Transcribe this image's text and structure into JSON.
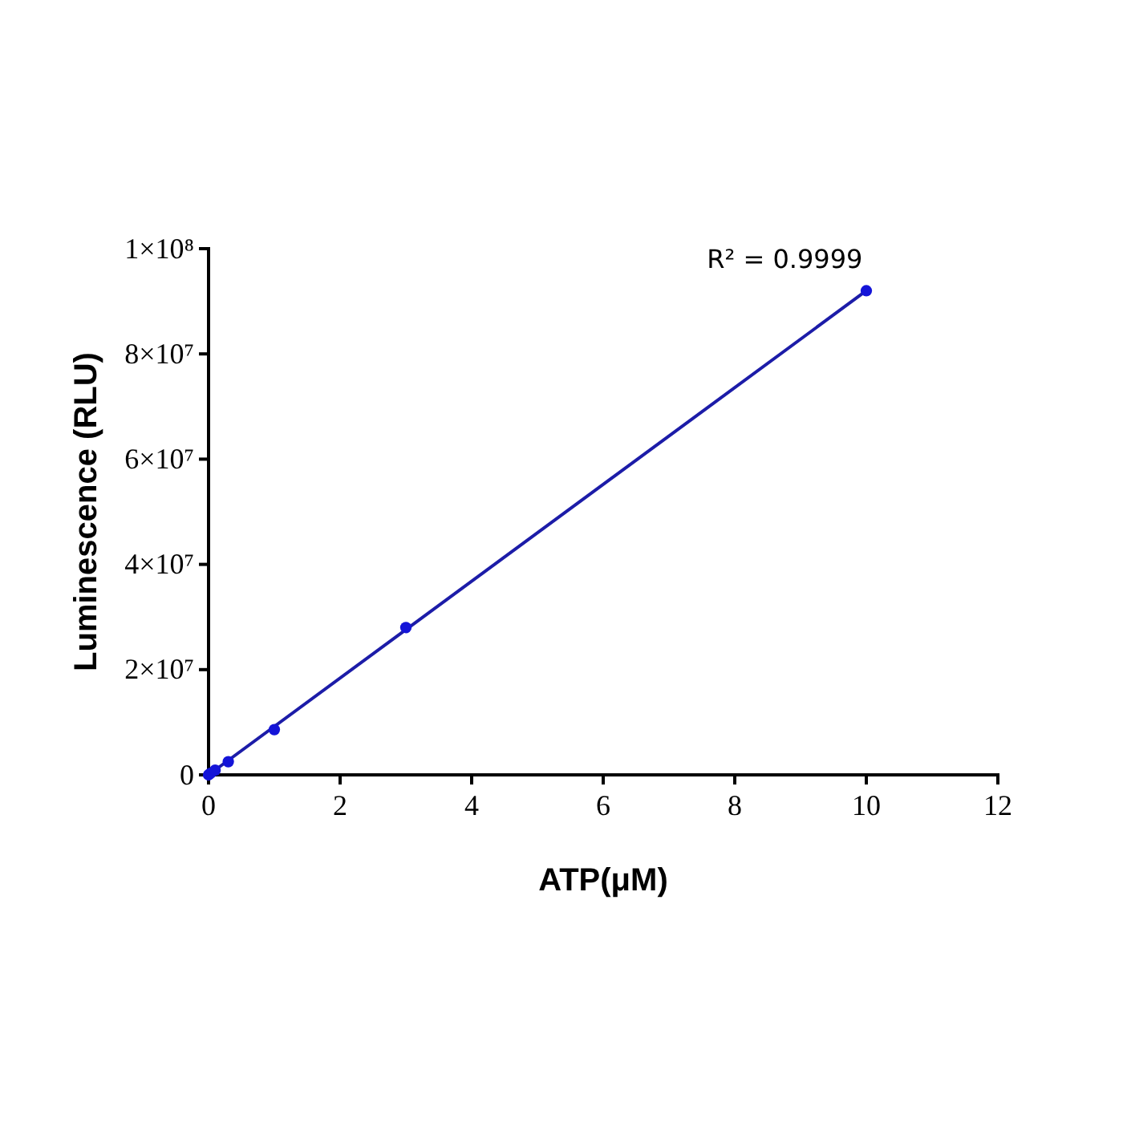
{
  "chart_data": {
    "type": "scatter",
    "xlabel": "ATP(μM)",
    "ylabel": "Luminescence (RLU)",
    "xlim": [
      0,
      12
    ],
    "xticks": [
      0,
      2,
      4,
      6,
      8,
      10,
      12
    ],
    "ylim": [
      0,
      100000000
    ],
    "yticks": [
      0,
      {
        "value": 20000000,
        "label": "2×10⁷"
      },
      {
        "value": 40000000,
        "label": "4×10⁷"
      },
      {
        "value": 60000000,
        "label": "6×10⁷"
      },
      {
        "value": 80000000,
        "label": "8×10⁷"
      },
      {
        "value": 100000000,
        "label": "1×10⁸"
      }
    ],
    "grid": false,
    "series": [
      {
        "type": "line",
        "marker": "none",
        "color": "#1c1ca8",
        "x": [
          0,
          10
        ],
        "values": [
          0,
          92000000
        ]
      },
      {
        "marker": "circle",
        "color": "#1414d8",
        "x": [
          0,
          0.03,
          0.1,
          0.3,
          1,
          3,
          10
        ],
        "values": [
          0,
          300000,
          900000,
          2500000,
          8600000,
          28000000,
          92000000
        ]
      }
    ],
    "annotations": [
      "R² = 0.9999"
    ]
  }
}
